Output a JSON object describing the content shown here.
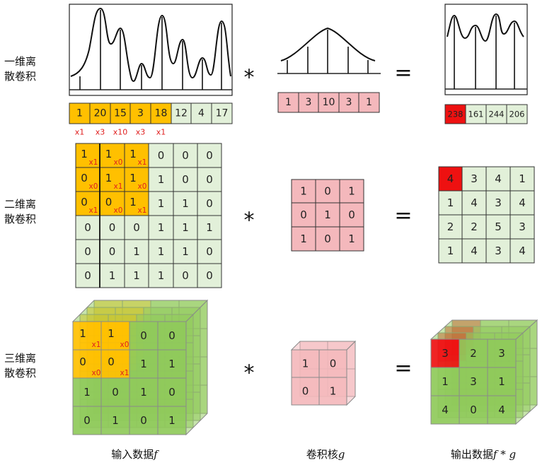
{
  "rows": {
    "one_d": {
      "label_line1": "一维离",
      "label_line2": "散卷积"
    },
    "two_d": {
      "label_line1": "二维离",
      "label_line2": "散卷积"
    },
    "three_d": {
      "label_line1": "三维离",
      "label_line2": "散卷积"
    }
  },
  "operators": {
    "multiply": "*",
    "equals": "="
  },
  "captions": {
    "input": "输入数据",
    "input_symbol": "f",
    "kernel": "卷积核",
    "kernel_symbol": "g",
    "output": "输出数据",
    "output_symbol": "f * g"
  },
  "colors": {
    "orange": "#ffc000",
    "green_light": "#e2f0d9",
    "green_cube": "#8fca5a",
    "pink": "#f4b8bc",
    "red": "#ee1111",
    "weight_text": "#e02020"
  },
  "one_d": {
    "input": [
      "1",
      "20",
      "15",
      "3",
      "18",
      "12",
      "4",
      "17"
    ],
    "highlight_count": 5,
    "weights": [
      "x1",
      "x3",
      "x10",
      "x3",
      "x1"
    ],
    "kernel": [
      "1",
      "3",
      "10",
      "3",
      "1"
    ],
    "output": [
      "238",
      "161",
      "244",
      "206"
    ]
  },
  "two_d": {
    "input": [
      [
        "1",
        "1",
        "1",
        "0",
        "0",
        "0"
      ],
      [
        "0",
        "1",
        "1",
        "1",
        "0",
        "0"
      ],
      [
        "0",
        "0",
        "1",
        "1",
        "1",
        "0"
      ],
      [
        "0",
        "0",
        "0",
        "1",
        "1",
        "1"
      ],
      [
        "0",
        "0",
        "1",
        "1",
        "1",
        "0"
      ],
      [
        "0",
        "1",
        "1",
        "1",
        "0",
        "0"
      ]
    ],
    "weights": [
      [
        "x1",
        "x0",
        "x1"
      ],
      [
        "x0",
        "x1",
        "x0"
      ],
      [
        "x1",
        "x0",
        "x1"
      ]
    ],
    "kernel": [
      [
        "1",
        "0",
        "1"
      ],
      [
        "0",
        "1",
        "0"
      ],
      [
        "1",
        "0",
        "1"
      ]
    ],
    "output": [
      [
        "4",
        "3",
        "4",
        "1"
      ],
      [
        "1",
        "4",
        "3",
        "4"
      ],
      [
        "2",
        "2",
        "5",
        "3"
      ],
      [
        "1",
        "4",
        "3",
        "4"
      ]
    ]
  },
  "three_d": {
    "input_front": [
      [
        "1",
        "1",
        "0",
        "0"
      ],
      [
        "0",
        "0",
        "1",
        "1"
      ],
      [
        "1",
        "0",
        "1",
        "0"
      ],
      [
        "0",
        "1",
        "0",
        "1"
      ]
    ],
    "weights": [
      [
        "x1",
        "x0"
      ],
      [
        "x0",
        "x1"
      ]
    ],
    "kernel_front": [
      [
        "1",
        "0"
      ],
      [
        "0",
        "1"
      ]
    ],
    "output_front": [
      [
        "3",
        "2",
        "3"
      ],
      [
        "1",
        "3",
        "1"
      ],
      [
        "4",
        "0",
        "4"
      ]
    ]
  }
}
